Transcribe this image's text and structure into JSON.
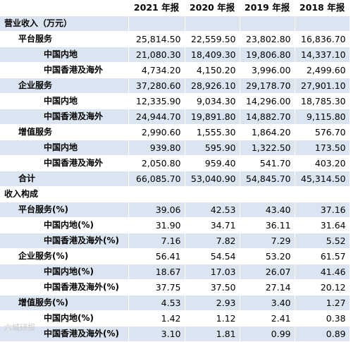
{
  "headers": [
    "2021 年报",
    "2020 年报",
    "2019 年报",
    "2018 年报"
  ],
  "rows": [
    {
      "label": "营业收入（万元）",
      "level": 0,
      "values": [
        "",
        "",
        "",
        ""
      ]
    },
    {
      "label": "平台服务",
      "level": 1,
      "values": [
        "25,814.50",
        "22,559.50",
        "23,802.80",
        "16,836.70"
      ]
    },
    {
      "label": "中国内地",
      "level": 2,
      "values": [
        "21,080.30",
        "18,409.30",
        "19,806.80",
        "14,337.10"
      ]
    },
    {
      "label": "中国香港及海外",
      "level": 2,
      "values": [
        "4,734.20",
        "4,150.20",
        "3,996.00",
        "2,499.60"
      ]
    },
    {
      "label": "企业服务",
      "level": 1,
      "values": [
        "37,280.60",
        "28,926.10",
        "29,178.70",
        "27,901.10"
      ]
    },
    {
      "label": "中国内地",
      "level": 2,
      "values": [
        "12,335.90",
        "9,034.30",
        "14,296.00",
        "18,785.30"
      ]
    },
    {
      "label": "中国香港及海外",
      "level": 2,
      "values": [
        "24,944.70",
        "19,891.80",
        "14,882.70",
        "9,115.80"
      ]
    },
    {
      "label": "增值服务",
      "level": 1,
      "values": [
        "2,990.60",
        "1,555.30",
        "1,864.20",
        "576.70"
      ]
    },
    {
      "label": "中国内地",
      "level": 2,
      "values": [
        "939.80",
        "595.90",
        "1,322.50",
        "173.50"
      ]
    },
    {
      "label": "中国香港及海外",
      "level": 2,
      "values": [
        "2,050.80",
        "959.40",
        "541.70",
        "403.20"
      ]
    },
    {
      "label": "合计",
      "level": 1,
      "values": [
        "66,085.70",
        "53,040.90",
        "54,845.70",
        "45,314.50"
      ]
    },
    {
      "label": "收入构成",
      "level": 0,
      "values": [
        "",
        "",
        "",
        ""
      ]
    },
    {
      "label": "平台服务(%)",
      "level": 1,
      "values": [
        "39.06",
        "42.53",
        "43.40",
        "37.16"
      ]
    },
    {
      "label": "中国内地(%)",
      "level": 2,
      "values": [
        "31.90",
        "34.71",
        "36.11",
        "31.64"
      ]
    },
    {
      "label": "中国香港及海外(%)",
      "level": 2,
      "values": [
        "7.16",
        "7.82",
        "7.29",
        "5.52"
      ]
    },
    {
      "label": "企业服务(%)",
      "level": 1,
      "values": [
        "56.41",
        "54.54",
        "53.20",
        "61.57"
      ]
    },
    {
      "label": "中国内地(%)",
      "level": 2,
      "values": [
        "18.67",
        "17.03",
        "26.07",
        "41.46"
      ]
    },
    {
      "label": "中国香港及海外(%)",
      "level": 2,
      "values": [
        "37.75",
        "37.50",
        "27.14",
        "20.12"
      ]
    },
    {
      "label": "增值服务(%)",
      "level": 1,
      "values": [
        "4.53",
        "2.93",
        "3.40",
        "1.27"
      ]
    },
    {
      "label": "中国内地(%)",
      "level": 2,
      "values": [
        "1.42",
        "1.12",
        "2.41",
        "0.38"
      ]
    },
    {
      "label": "中国香港及海外(%)",
      "level": 2,
      "values": [
        "3.10",
        "1.81",
        "0.99",
        "0.89"
      ]
    }
  ],
  "watermark": "六城研报",
  "colors": {
    "stripe": "#dbe5f1",
    "background": "#ffffff"
  }
}
